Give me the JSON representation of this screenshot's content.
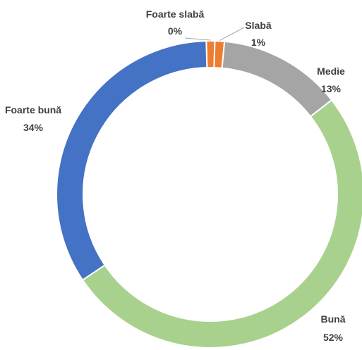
{
  "chart_data": {
    "type": "pie",
    "subtype": "doughnut",
    "categories": [
      "Foarte slabă",
      "Slabă",
      "Medie",
      "Bună",
      "Foarte bună"
    ],
    "values": [
      0,
      1,
      13,
      52,
      34
    ],
    "labels": [
      {
        "name": "Foarte slabă",
        "percent": "0%"
      },
      {
        "name": "Slabă",
        "percent": "1%"
      },
      {
        "name": "Medie",
        "percent": "13%"
      },
      {
        "name": "Bună",
        "percent": "52%"
      },
      {
        "name": "Foarte bună",
        "percent": "34%"
      }
    ],
    "colors": [
      "#ED7D31",
      "#ED7D31",
      "#A5A5A5",
      "#A9D18E",
      "#4472C4"
    ],
    "start": "top, clockwise",
    "legend": "none",
    "title": ""
  }
}
